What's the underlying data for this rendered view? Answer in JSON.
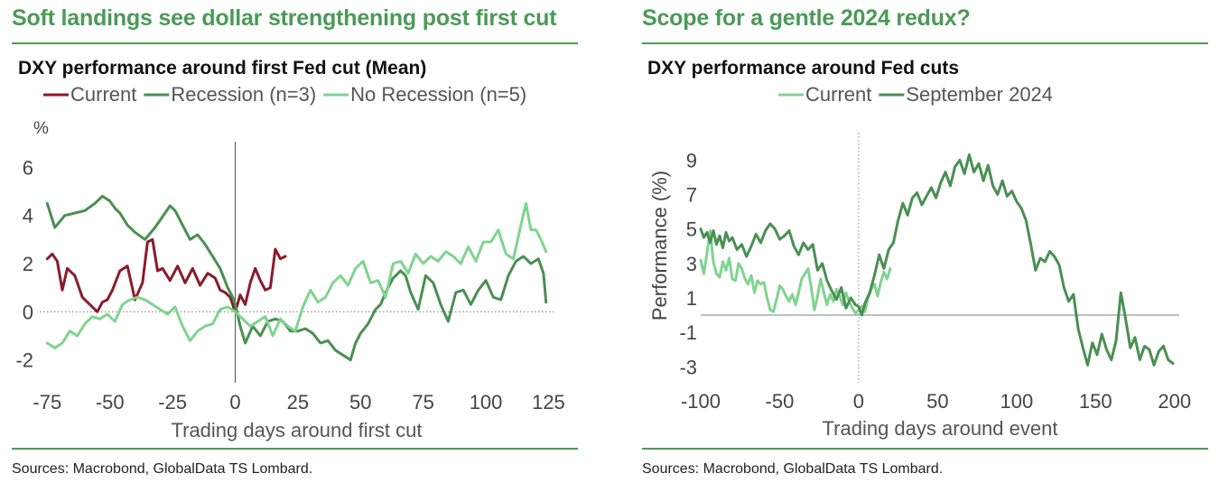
{
  "left": {
    "heading": "Soft landings see dollar strengthening post first cut",
    "sources": "Sources: Macrobond, GlobalData TS Lombard."
  },
  "right": {
    "heading": "Scope for a gentle 2024 redux?",
    "sources": "Sources: Macrobond, GlobalData TS Lombard."
  },
  "chart_data": [
    {
      "type": "line",
      "title": "DXY performance around first Fed cut (Mean)",
      "xlabel": "Trading days around first cut",
      "ylabel": "%",
      "xlim": [
        -78,
        127
      ],
      "ylim": [
        -2.5,
        6.5
      ],
      "xticks": [
        -75,
        -50,
        -25,
        0,
        25,
        50,
        75,
        100,
        125
      ],
      "yticks": [
        -2,
        0,
        2,
        4,
        6
      ],
      "zero_line": "dotted",
      "event_line_x": 0,
      "legend_position": "top",
      "series": [
        {
          "name": "Current",
          "color": "#8b1a2b",
          "x": [
            -75,
            -73,
            -71,
            -69,
            -67,
            -64,
            -61,
            -58,
            -55,
            -53,
            -51,
            -49,
            -46,
            -43,
            -40,
            -37,
            -35,
            -33,
            -31,
            -29,
            -26,
            -23,
            -20,
            -17,
            -14,
            -11,
            -8,
            -6,
            -4,
            -2,
            0,
            2,
            4,
            6,
            8,
            10,
            12,
            14,
            16,
            18,
            20
          ],
          "y": [
            2.2,
            2.4,
            2.1,
            0.9,
            1.8,
            1.5,
            0.6,
            0.3,
            0.0,
            0.4,
            0.5,
            0.9,
            1.7,
            1.9,
            0.5,
            1.2,
            2.9,
            3.0,
            1.7,
            1.8,
            1.3,
            1.9,
            1.2,
            1.8,
            1.1,
            1.6,
            1.4,
            0.9,
            0.8,
            0.6,
            0.0,
            0.7,
            0.3,
            1.2,
            1.8,
            1.3,
            0.9,
            1.0,
            2.6,
            2.2,
            2.3
          ]
        },
        {
          "name": "Recession (n=3)",
          "color": "#4a8f52",
          "x": [
            -75,
            -72,
            -68,
            -64,
            -60,
            -56,
            -53,
            -50,
            -48,
            -46,
            -43,
            -40,
            -36,
            -32,
            -28,
            -26,
            -24,
            -21,
            -18,
            -15,
            -12,
            -9,
            -6,
            -3,
            -1,
            0,
            2,
            4,
            7,
            10,
            13,
            16,
            19,
            22,
            25,
            28,
            31,
            34,
            37,
            40,
            43,
            46,
            48,
            50,
            53,
            56,
            58,
            60,
            63,
            66,
            68,
            70,
            73,
            76,
            79,
            82,
            85,
            88,
            91,
            94,
            97,
            100,
            103,
            106,
            109,
            112,
            115,
            118,
            121,
            123,
            124
          ],
          "y": [
            4.5,
            3.5,
            4.0,
            4.1,
            4.2,
            4.5,
            4.8,
            4.6,
            4.3,
            4.1,
            3.6,
            3.3,
            3.0,
            3.5,
            4.1,
            4.4,
            4.2,
            3.6,
            3.0,
            3.2,
            2.8,
            2.3,
            1.8,
            1.0,
            0.6,
            0.3,
            -0.6,
            -1.3,
            -0.6,
            -1.0,
            -0.4,
            -0.3,
            -0.4,
            -0.8,
            -0.8,
            -0.7,
            -0.9,
            -1.3,
            -1.2,
            -1.6,
            -1.8,
            -2.0,
            -1.3,
            -0.9,
            -0.5,
            0.1,
            0.3,
            0.8,
            1.4,
            1.7,
            1.5,
            0.8,
            0.1,
            1.5,
            1.2,
            0.3,
            -0.4,
            0.8,
            0.9,
            0.3,
            0.9,
            1.3,
            0.6,
            0.5,
            1.5,
            2.1,
            2.3,
            2.0,
            2.2,
            1.6,
            0.4
          ]
        },
        {
          "name": "No Recession (n=5)",
          "color": "#7fd48f",
          "x": [
            -75,
            -72,
            -69,
            -66,
            -63,
            -60,
            -57,
            -54,
            -51,
            -48,
            -45,
            -42,
            -39,
            -36,
            -33,
            -30,
            -27,
            -24,
            -21,
            -18,
            -15,
            -12,
            -9,
            -6,
            -3,
            0,
            3,
            6,
            9,
            12,
            15,
            18,
            21,
            24,
            27,
            30,
            33,
            36,
            39,
            42,
            45,
            48,
            51,
            54,
            57,
            60,
            63,
            66,
            69,
            72,
            75,
            78,
            81,
            84,
            87,
            90,
            93,
            96,
            99,
            102,
            105,
            108,
            111,
            114,
            116,
            118,
            120,
            122,
            124
          ],
          "y": [
            -1.3,
            -1.5,
            -1.3,
            -0.8,
            -1.0,
            -0.5,
            -0.2,
            -0.3,
            -0.1,
            -0.4,
            0.3,
            0.5,
            0.6,
            0.5,
            0.3,
            0.1,
            -0.1,
            0.2,
            -0.6,
            -1.2,
            -0.8,
            -0.6,
            -0.5,
            0.1,
            0.2,
            0.0,
            -0.3,
            -0.6,
            -0.4,
            -0.2,
            -1.0,
            -0.3,
            -0.6,
            -0.8,
            0.2,
            0.9,
            0.4,
            0.6,
            1.2,
            1.5,
            1.1,
            1.8,
            2.1,
            1.2,
            1.3,
            0.6,
            2.0,
            2.1,
            1.6,
            2.4,
            2.0,
            2.3,
            2.1,
            2.5,
            2.3,
            2.0,
            2.7,
            2.1,
            2.9,
            2.9,
            3.4,
            2.4,
            2.2,
            3.6,
            4.5,
            3.4,
            3.4,
            3.0,
            2.5
          ]
        }
      ]
    },
    {
      "type": "line",
      "title": "DXY performance around Fed cuts",
      "xlabel": "Trading days around event",
      "ylabel": "Performance (%)",
      "xlim": [
        -100,
        203
      ],
      "ylim": [
        -3.3,
        9.8
      ],
      "xticks": [
        -100,
        -50,
        0,
        50,
        100,
        150,
        200
      ],
      "yticks": [
        -3,
        -1,
        1,
        3,
        5,
        7,
        9
      ],
      "zero_line": "solid",
      "event_line_x": 0,
      "legend_position": "top",
      "series": [
        {
          "name": "Current",
          "color": "#7fd48f",
          "x": [
            -100,
            -98,
            -96,
            -94,
            -92,
            -90,
            -88,
            -86,
            -84,
            -82,
            -80,
            -78,
            -76,
            -74,
            -72,
            -70,
            -68,
            -66,
            -64,
            -62,
            -60,
            -58,
            -56,
            -54,
            -52,
            -50,
            -48,
            -46,
            -44,
            -42,
            -40,
            -38,
            -36,
            -34,
            -32,
            -30,
            -28,
            -26,
            -24,
            -22,
            -20,
            -18,
            -16,
            -14,
            -12,
            -10,
            -8,
            -6,
            -4,
            -2,
            0,
            2,
            4,
            6,
            8,
            10,
            12,
            14,
            16,
            18,
            20
          ],
          "y": [
            3.2,
            2.4,
            3.6,
            4.9,
            3.1,
            2.4,
            2.2,
            3.1,
            2.6,
            3.3,
            2.1,
            2.0,
            3.0,
            2.7,
            2.1,
            1.8,
            2.3,
            1.3,
            2.0,
            1.8,
            1.9,
            1.0,
            0.3,
            0.2,
            0.9,
            1.7,
            1.5,
            1.1,
            0.8,
            1.2,
            0.6,
            1.3,
            2.1,
            2.4,
            2.7,
            1.6,
            0.3,
            1.1,
            2.1,
            1.3,
            0.6,
            1.2,
            0.8,
            1.5,
            1.1,
            0.6,
            1.3,
            0.8,
            0.4,
            0.1,
            0.3,
            0.5,
            0.2,
            1.0,
            1.5,
            1.8,
            1.1,
            1.9,
            2.5,
            2.1,
            2.7
          ]
        },
        {
          "name": "September 2024",
          "color": "#4a8f52",
          "x": [
            -100,
            -98,
            -96,
            -94,
            -92,
            -90,
            -88,
            -86,
            -84,
            -82,
            -80,
            -77,
            -74,
            -71,
            -68,
            -65,
            -62,
            -59,
            -56,
            -53,
            -50,
            -47,
            -44,
            -41,
            -38,
            -35,
            -32,
            -29,
            -26,
            -23,
            -20,
            -17,
            -14,
            -11,
            -8,
            -5,
            -2,
            0,
            2,
            4,
            7,
            10,
            13,
            16,
            19,
            22,
            25,
            28,
            31,
            34,
            37,
            40,
            43,
            46,
            49,
            52,
            55,
            58,
            61,
            64,
            67,
            70,
            73,
            76,
            79,
            82,
            85,
            88,
            91,
            94,
            97,
            100,
            103,
            106,
            109,
            112,
            115,
            118,
            121,
            124,
            127,
            130,
            133,
            136,
            139,
            142,
            145,
            148,
            151,
            154,
            157,
            160,
            163,
            166,
            169,
            172,
            175,
            178,
            181,
            184,
            187,
            190,
            193,
            196,
            199
          ],
          "y": [
            5.0,
            4.5,
            4.8,
            4.2,
            4.9,
            4.1,
            4.6,
            3.9,
            4.8,
            4.3,
            4.5,
            3.8,
            4.1,
            3.4,
            4.0,
            4.7,
            4.2,
            4.9,
            5.3,
            5.0,
            4.4,
            4.6,
            4.9,
            4.0,
            3.5,
            4.2,
            3.8,
            4.1,
            2.6,
            3.0,
            2.0,
            1.4,
            0.9,
            1.6,
            0.4,
            1.0,
            0.6,
            0.5,
            0.0,
            0.7,
            1.3,
            2.3,
            3.5,
            2.7,
            3.8,
            4.2,
            5.5,
            6.5,
            5.8,
            6.8,
            7.1,
            6.4,
            6.9,
            7.4,
            6.8,
            7.7,
            8.3,
            7.5,
            8.6,
            9.0,
            8.2,
            9.3,
            8.3,
            8.8,
            7.8,
            8.7,
            7.5,
            7.0,
            7.8,
            6.9,
            7.2,
            6.6,
            6.2,
            5.5,
            4.1,
            2.6,
            3.3,
            3.1,
            3.7,
            3.4,
            2.9,
            1.6,
            0.8,
            1.2,
            -0.8,
            -1.9,
            -2.9,
            -1.6,
            -2.3,
            -1.1,
            -2.0,
            -2.6,
            -1.5,
            1.3,
            -0.2,
            -1.9,
            -1.3,
            -2.6,
            -1.8,
            -2.0,
            -2.9,
            -2.1,
            -1.8,
            -2.6,
            -2.8
          ]
        }
      ]
    }
  ]
}
